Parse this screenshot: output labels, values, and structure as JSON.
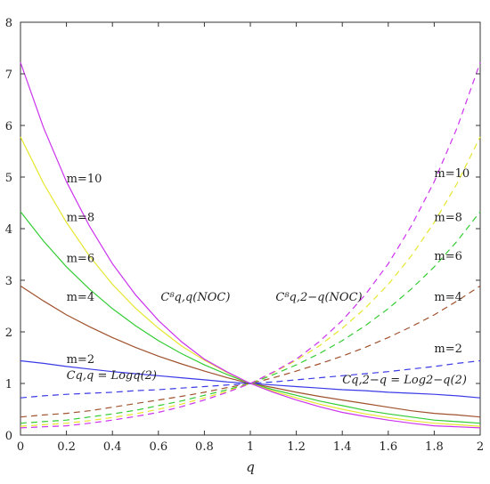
{
  "chart_data": {
    "type": "line",
    "xlabel": "q",
    "ylabel": "",
    "xlim": [
      0,
      2
    ],
    "ylim": [
      0,
      8
    ],
    "grid": false,
    "x_ticks": [
      "0",
      "0.2",
      "0.4",
      "0.6",
      "0.8",
      "1",
      "1.2",
      "1.4",
      "1.6",
      "1.8",
      "2"
    ],
    "y_ticks": [
      "0",
      "1",
      "2",
      "3",
      "4",
      "5",
      "6",
      "7",
      "8"
    ],
    "x": [
      0,
      0.1,
      0.2,
      0.3,
      0.4,
      0.5,
      0.6,
      0.7,
      0.8,
      0.9,
      1.0,
      1.1,
      1.2,
      1.3,
      1.4,
      1.5,
      1.6,
      1.7,
      1.8,
      1.9,
      2.0
    ],
    "series": [
      {
        "name": "m=2",
        "color": "#3a3ae6",
        "style": "solid",
        "values": [
          1.44,
          1.39,
          1.33,
          1.28,
          1.23,
          1.19,
          1.15,
          1.11,
          1.07,
          1.03,
          1.0,
          0.97,
          0.94,
          0.91,
          0.88,
          0.86,
          0.83,
          0.81,
          0.79,
          0.76,
          0.72
        ]
      },
      {
        "name": "m=4",
        "color": "#a0522d",
        "style": "solid",
        "values": [
          2.89,
          2.6,
          2.33,
          2.1,
          1.89,
          1.7,
          1.53,
          1.38,
          1.24,
          1.11,
          1.0,
          0.92,
          0.83,
          0.75,
          0.68,
          0.61,
          0.54,
          0.47,
          0.42,
          0.39,
          0.35
        ]
      },
      {
        "name": "m=6",
        "color": "#33cc33",
        "style": "solid",
        "values": [
          4.33,
          3.76,
          3.26,
          2.83,
          2.45,
          2.12,
          1.83,
          1.58,
          1.36,
          1.17,
          1.0,
          0.88,
          0.77,
          0.66,
          0.57,
          0.48,
          0.41,
          0.35,
          0.29,
          0.26,
          0.23
        ]
      },
      {
        "name": "m=8",
        "color": "#e6e62e",
        "style": "solid",
        "values": [
          5.78,
          4.88,
          4.12,
          3.47,
          2.92,
          2.46,
          2.07,
          1.73,
          1.45,
          1.21,
          1.0,
          0.85,
          0.72,
          0.6,
          0.5,
          0.41,
          0.34,
          0.28,
          0.23,
          0.2,
          0.17
        ]
      },
      {
        "name": "m=10",
        "color": "#cc33ee",
        "style": "solid",
        "values": [
          7.22,
          5.96,
          4.91,
          4.05,
          3.32,
          2.72,
          2.22,
          1.81,
          1.47,
          1.22,
          1.0,
          0.83,
          0.68,
          0.55,
          0.44,
          0.36,
          0.29,
          0.23,
          0.18,
          0.16,
          0.14
        ]
      },
      {
        "name": "m=2",
        "color": "#3a3ae6",
        "style": "dashed",
        "values": [
          0.72,
          0.76,
          0.79,
          0.81,
          0.83,
          0.86,
          0.88,
          0.91,
          0.94,
          0.97,
          1.0,
          1.03,
          1.07,
          1.11,
          1.15,
          1.19,
          1.23,
          1.28,
          1.33,
          1.39,
          1.44
        ]
      },
      {
        "name": "m=4",
        "color": "#a0522d",
        "style": "dashed",
        "values": [
          0.35,
          0.39,
          0.42,
          0.47,
          0.54,
          0.61,
          0.68,
          0.75,
          0.83,
          0.92,
          1.0,
          1.11,
          1.24,
          1.38,
          1.53,
          1.7,
          1.89,
          2.1,
          2.33,
          2.6,
          2.89
        ]
      },
      {
        "name": "m=6",
        "color": "#33cc33",
        "style": "dashed",
        "values": [
          0.23,
          0.26,
          0.29,
          0.35,
          0.41,
          0.48,
          0.57,
          0.66,
          0.77,
          0.88,
          1.0,
          1.17,
          1.36,
          1.58,
          1.83,
          2.12,
          2.45,
          2.83,
          3.26,
          3.76,
          4.33
        ]
      },
      {
        "name": "m=8",
        "color": "#e6e62e",
        "style": "dashed",
        "values": [
          0.17,
          0.2,
          0.23,
          0.28,
          0.34,
          0.41,
          0.5,
          0.6,
          0.72,
          0.85,
          1.0,
          1.21,
          1.45,
          1.73,
          2.07,
          2.46,
          2.92,
          3.47,
          4.12,
          4.88,
          5.78
        ]
      },
      {
        "name": "m=10",
        "color": "#cc33ee",
        "style": "dashed",
        "values": [
          0.14,
          0.16,
          0.18,
          0.23,
          0.29,
          0.36,
          0.44,
          0.55,
          0.68,
          0.83,
          1.0,
          1.22,
          1.47,
          1.81,
          2.22,
          2.72,
          3.32,
          4.05,
          4.91,
          5.96,
          7.22
        ]
      }
    ],
    "annotations": [
      {
        "text": "m=10",
        "x": 0.2,
        "y": 4.9,
        "anchor": "start"
      },
      {
        "text": "m=8",
        "x": 0.2,
        "y": 4.15,
        "anchor": "start"
      },
      {
        "text": "m=6",
        "x": 0.2,
        "y": 3.35,
        "anchor": "start"
      },
      {
        "text": "m=4",
        "x": 0.2,
        "y": 2.6,
        "anchor": "start"
      },
      {
        "text": "m=2",
        "x": 0.2,
        "y": 1.4,
        "anchor": "start"
      },
      {
        "text": "m=10",
        "x": 1.8,
        "y": 5.0,
        "anchor": "start"
      },
      {
        "text": "m=8",
        "x": 1.8,
        "y": 4.15,
        "anchor": "start"
      },
      {
        "text": "m=6",
        "x": 1.8,
        "y": 3.4,
        "anchor": "start"
      },
      {
        "text": "m=4",
        "x": 1.8,
        "y": 2.6,
        "anchor": "start"
      },
      {
        "text": "m=2",
        "x": 1.8,
        "y": 1.6,
        "anchor": "start"
      },
      {
        "text": "C⁸q,q(NOC)",
        "x": 0.61,
        "y": 2.6,
        "anchor": "start"
      },
      {
        "text": "C⁸q,2−q(NOC)",
        "x": 1.11,
        "y": 2.6,
        "anchor": "start"
      },
      {
        "text": "Cq,q = Logq(2)",
        "x": 0.2,
        "y": 1.09,
        "anchor": "start"
      },
      {
        "text": "Cq,2−q = Log2−q(2)",
        "x": 1.4,
        "y": 1.0,
        "anchor": "start"
      }
    ]
  }
}
